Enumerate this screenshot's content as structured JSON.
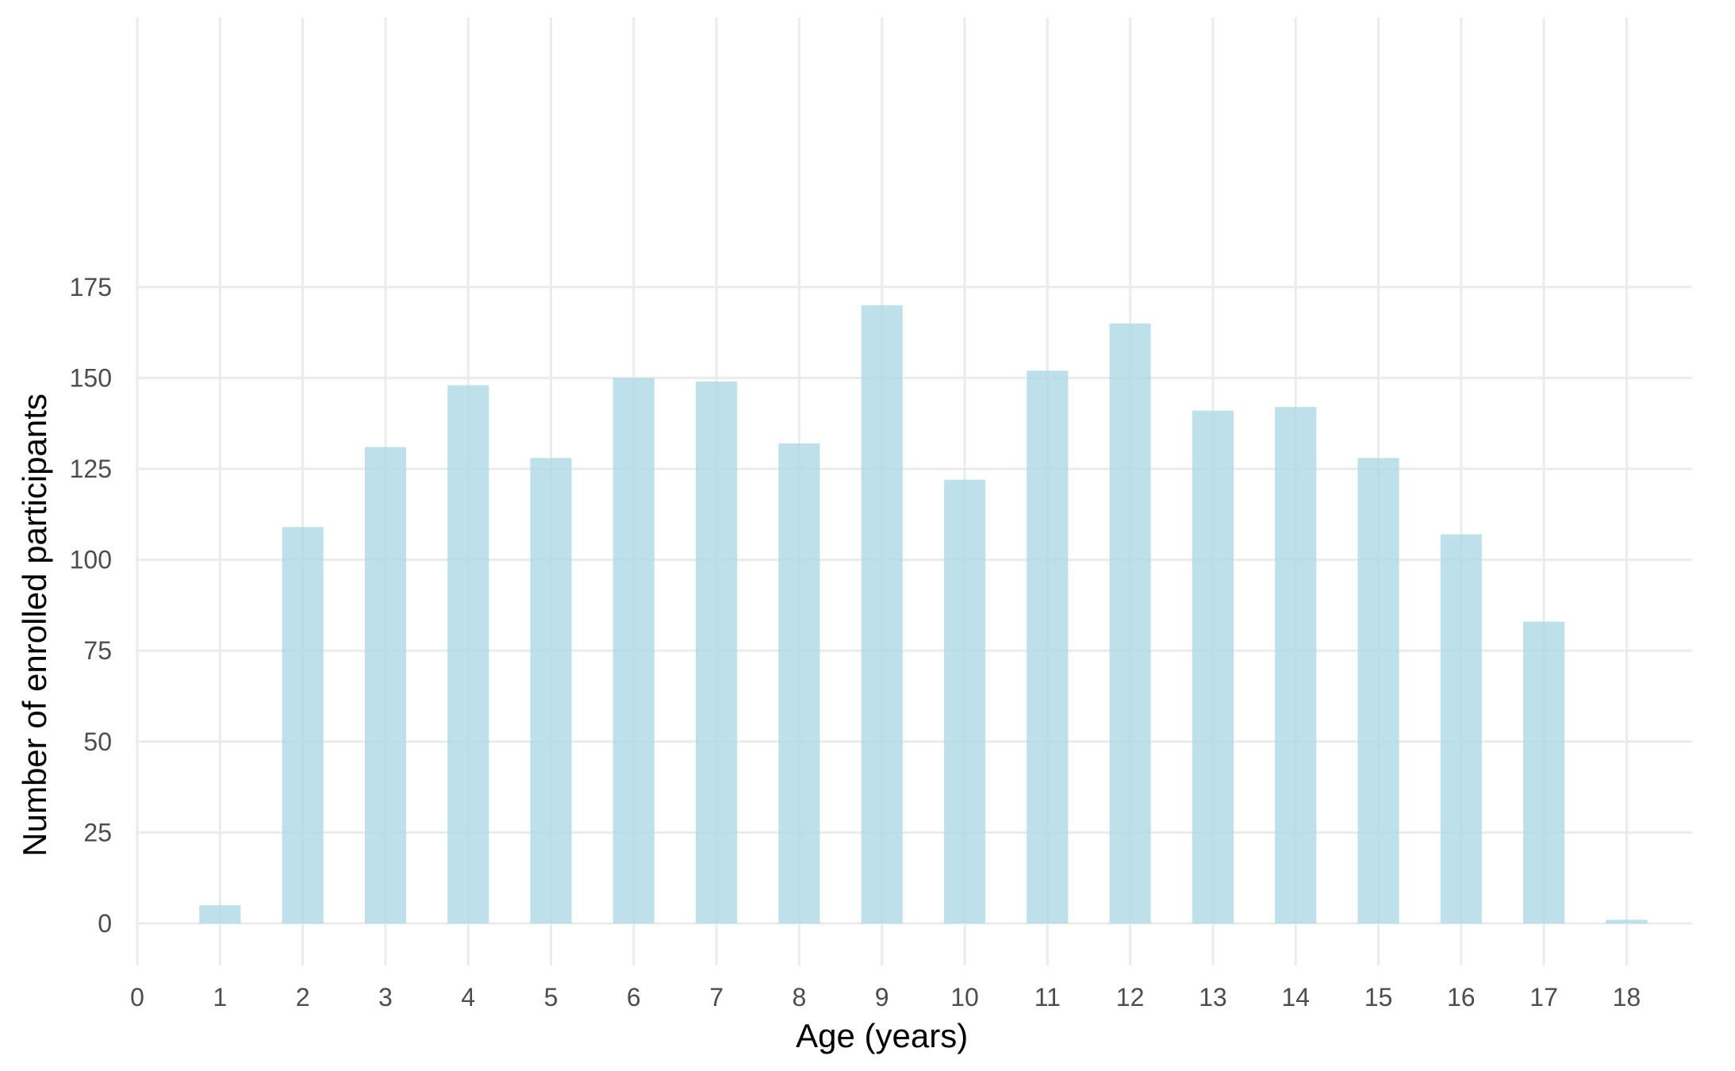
{
  "chart_data": {
    "type": "bar",
    "x": [
      1,
      2,
      3,
      4,
      5,
      6,
      7,
      8,
      9,
      10,
      11,
      12,
      13,
      14,
      15,
      16,
      17,
      18
    ],
    "values": [
      5,
      109,
      131,
      148,
      128,
      150,
      149,
      132,
      170,
      122,
      152,
      165,
      141,
      142,
      128,
      107,
      83,
      1
    ],
    "xlabel": "Age (years)",
    "ylabel": "Number of enrolled participants",
    "xticks": [
      "0",
      "1",
      "2",
      "3",
      "4",
      "5",
      "6",
      "7",
      "8",
      "9",
      "10",
      "11",
      "12",
      "13",
      "14",
      "15",
      "16",
      "17",
      "18"
    ],
    "yticks": [
      "0",
      "25",
      "50",
      "75",
      "100",
      "125",
      "150",
      "175"
    ],
    "xlim": [
      0,
      19
    ],
    "ylim": [
      -8,
      178
    ],
    "grid": true,
    "bar_color": "#add8e6",
    "bar_opacity": 0.8,
    "grid_color": "#ebebeb"
  }
}
